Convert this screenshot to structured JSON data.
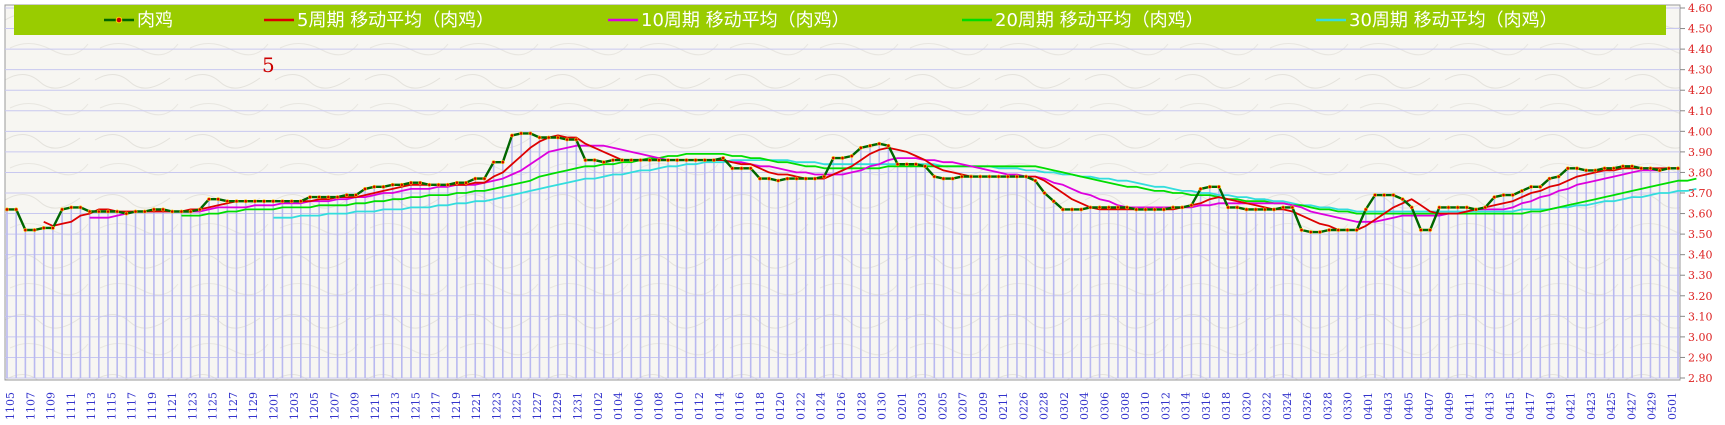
{
  "chart_data": {
    "type": "line",
    "title": "",
    "annotation": "5",
    "xlabel": "",
    "ylabel": "",
    "ylim": [
      2.8,
      4.6
    ],
    "ytick_step": 0.1,
    "yticks": [
      "2.80",
      "2.90",
      "3.00",
      "3.10",
      "3.20",
      "3.30",
      "3.40",
      "3.50",
      "3.60",
      "3.70",
      "3.80",
      "3.90",
      "4.00",
      "4.10",
      "4.20",
      "4.30",
      "4.40",
      "4.50",
      "4.60"
    ],
    "x_tick_labels": [
      "1105",
      "1107",
      "1109",
      "1111",
      "1113",
      "1115",
      "1117",
      "1119",
      "1121",
      "1123",
      "1125",
      "1127",
      "1129",
      "1201",
      "1203",
      "1205",
      "1207",
      "1209",
      "1211",
      "1213",
      "1215",
      "1217",
      "1219",
      "1221",
      "1223",
      "1225",
      "1227",
      "1229",
      "1231",
      "0102",
      "0104",
      "0106",
      "0108",
      "0110",
      "0112",
      "0114",
      "0116",
      "0118",
      "0120",
      "0122",
      "0124",
      "0126",
      "0128",
      "0130",
      "0201",
      "0203",
      "0205",
      "0207",
      "0209",
      "0211",
      "0226",
      "0228",
      "0302",
      "0304",
      "0306",
      "0308",
      "0310",
      "0312",
      "0314",
      "0316",
      "0318",
      "0320",
      "0322",
      "0324",
      "0326",
      "0328",
      "0330",
      "0401",
      "0403",
      "0405",
      "0407",
      "0409",
      "0411",
      "0413",
      "0415",
      "0417",
      "0419",
      "0421",
      "0423",
      "0425",
      "0427",
      "0429",
      "0501"
    ],
    "grid": true,
    "legend_position": "top",
    "colors": {
      "legend_band": "#99cc00",
      "axis_labels": "#dd2222",
      "x_labels": "#3333cc",
      "bars": "#b9b9f0",
      "grid": "#c8c8f0",
      "annotation": "#cc0000"
    },
    "series": [
      {
        "name": "肉鸡",
        "color": "#006600",
        "marker": "#cc0000",
        "values": [
          3.62,
          3.62,
          3.52,
          3.52,
          3.53,
          3.53,
          3.62,
          3.63,
          3.63,
          3.61,
          3.61,
          3.61,
          3.61,
          3.6,
          3.61,
          3.61,
          3.62,
          3.62,
          3.61,
          3.61,
          3.61,
          3.62,
          3.67,
          3.67,
          3.66,
          3.66,
          3.66,
          3.66,
          3.66,
          3.66,
          3.66,
          3.66,
          3.66,
          3.68,
          3.68,
          3.68,
          3.68,
          3.69,
          3.69,
          3.72,
          3.73,
          3.73,
          3.74,
          3.74,
          3.75,
          3.75,
          3.74,
          3.74,
          3.74,
          3.75,
          3.75,
          3.77,
          3.77,
          3.85,
          3.85,
          3.98,
          3.99,
          3.99,
          3.97,
          3.97,
          3.97,
          3.96,
          3.96,
          3.86,
          3.86,
          3.85,
          3.86,
          3.86,
          3.86,
          3.86,
          3.86,
          3.86,
          3.86,
          3.86,
          3.86,
          3.86,
          3.86,
          3.86,
          3.87,
          3.82,
          3.82,
          3.82,
          3.77,
          3.77,
          3.76,
          3.77,
          3.77,
          3.77,
          3.77,
          3.78,
          3.87,
          3.87,
          3.88,
          3.92,
          3.93,
          3.94,
          3.93,
          3.84,
          3.84,
          3.84,
          3.83,
          3.78,
          3.77,
          3.77,
          3.78,
          3.78,
          3.78,
          3.78,
          3.78,
          3.78,
          3.78,
          3.78,
          3.76,
          3.7,
          3.66,
          3.62,
          3.62,
          3.62,
          3.63,
          3.63,
          3.63,
          3.63,
          3.63,
          3.62,
          3.62,
          3.62,
          3.62,
          3.63,
          3.63,
          3.64,
          3.72,
          3.73,
          3.73,
          3.63,
          3.63,
          3.62,
          3.62,
          3.62,
          3.62,
          3.63,
          3.63,
          3.52,
          3.51,
          3.51,
          3.52,
          3.52,
          3.52,
          3.52,
          3.62,
          3.69,
          3.69,
          3.69,
          3.67,
          3.63,
          3.52,
          3.52,
          3.63,
          3.63,
          3.63,
          3.63,
          3.62,
          3.63,
          3.68,
          3.69,
          3.69,
          3.71,
          3.73,
          3.73,
          3.77,
          3.78,
          3.82,
          3.82,
          3.81,
          3.81,
          3.82,
          3.82,
          3.83,
          3.83,
          3.82,
          3.82,
          3.81,
          3.82,
          3.82
        ]
      },
      {
        "name": "5周期 移动平均（肉鸡）",
        "color": "#dd0000",
        "values": [
          null,
          null,
          null,
          null,
          3.56,
          3.54,
          3.55,
          3.56,
          3.59,
          3.6,
          3.62,
          3.62,
          3.61,
          3.61,
          3.61,
          3.61,
          3.61,
          3.61,
          3.61,
          3.61,
          3.62,
          3.62,
          3.63,
          3.64,
          3.65,
          3.66,
          3.66,
          3.66,
          3.66,
          3.66,
          3.66,
          3.66,
          3.66,
          3.66,
          3.67,
          3.67,
          3.68,
          3.68,
          3.68,
          3.69,
          3.7,
          3.71,
          3.72,
          3.73,
          3.74,
          3.74,
          3.74,
          3.74,
          3.74,
          3.74,
          3.74,
          3.75,
          3.75,
          3.78,
          3.8,
          3.84,
          3.88,
          3.92,
          3.95,
          3.97,
          3.98,
          3.97,
          3.97,
          3.94,
          3.92,
          3.9,
          3.88,
          3.86,
          3.86,
          3.86,
          3.86,
          3.86,
          3.86,
          3.86,
          3.86,
          3.86,
          3.86,
          3.86,
          3.86,
          3.85,
          3.84,
          3.84,
          3.82,
          3.8,
          3.79,
          3.79,
          3.78,
          3.77,
          3.77,
          3.77,
          3.79,
          3.81,
          3.83,
          3.86,
          3.89,
          3.91,
          3.92,
          3.91,
          3.9,
          3.88,
          3.86,
          3.83,
          3.81,
          3.8,
          3.79,
          3.78,
          3.78,
          3.78,
          3.78,
          3.78,
          3.78,
          3.78,
          3.78,
          3.76,
          3.73,
          3.7,
          3.67,
          3.65,
          3.63,
          3.62,
          3.62,
          3.62,
          3.62,
          3.62,
          3.62,
          3.62,
          3.62,
          3.62,
          3.63,
          3.64,
          3.65,
          3.67,
          3.68,
          3.67,
          3.66,
          3.65,
          3.64,
          3.63,
          3.62,
          3.62,
          3.61,
          3.59,
          3.57,
          3.55,
          3.54,
          3.52,
          3.52,
          3.52,
          3.54,
          3.57,
          3.6,
          3.63,
          3.65,
          3.67,
          3.64,
          3.61,
          3.6,
          3.6,
          3.6,
          3.61,
          3.62,
          3.63,
          3.64,
          3.65,
          3.66,
          3.68,
          3.7,
          3.71,
          3.73,
          3.74,
          3.76,
          3.78,
          3.79,
          3.8,
          3.81,
          3.81,
          3.82,
          3.82,
          3.82,
          3.82,
          3.82,
          3.82,
          3.82
        ]
      },
      {
        "name": "10周期 移动平均（肉鸡）",
        "color": "#dd00dd",
        "values": [
          null,
          null,
          null,
          null,
          null,
          null,
          null,
          null,
          null,
          3.58,
          3.58,
          3.58,
          3.59,
          3.6,
          3.61,
          3.61,
          3.61,
          3.61,
          3.61,
          3.61,
          3.61,
          3.61,
          3.62,
          3.63,
          3.63,
          3.63,
          3.63,
          3.64,
          3.64,
          3.64,
          3.65,
          3.65,
          3.65,
          3.66,
          3.66,
          3.66,
          3.67,
          3.67,
          3.68,
          3.68,
          3.69,
          3.7,
          3.7,
          3.71,
          3.72,
          3.72,
          3.72,
          3.73,
          3.73,
          3.74,
          3.74,
          3.74,
          3.75,
          3.76,
          3.77,
          3.79,
          3.81,
          3.84,
          3.87,
          3.9,
          3.91,
          3.92,
          3.93,
          3.93,
          3.93,
          3.93,
          3.92,
          3.91,
          3.9,
          3.89,
          3.88,
          3.87,
          3.86,
          3.86,
          3.86,
          3.86,
          3.86,
          3.86,
          3.86,
          3.85,
          3.85,
          3.84,
          3.83,
          3.83,
          3.82,
          3.81,
          3.8,
          3.8,
          3.79,
          3.79,
          3.79,
          3.79,
          3.8,
          3.81,
          3.83,
          3.84,
          3.86,
          3.87,
          3.87,
          3.87,
          3.86,
          3.86,
          3.85,
          3.85,
          3.84,
          3.83,
          3.82,
          3.81,
          3.8,
          3.79,
          3.79,
          3.78,
          3.78,
          3.77,
          3.75,
          3.74,
          3.72,
          3.7,
          3.69,
          3.67,
          3.66,
          3.64,
          3.63,
          3.63,
          3.63,
          3.63,
          3.63,
          3.63,
          3.63,
          3.63,
          3.64,
          3.64,
          3.65,
          3.65,
          3.65,
          3.65,
          3.65,
          3.65,
          3.65,
          3.65,
          3.64,
          3.63,
          3.61,
          3.6,
          3.59,
          3.58,
          3.57,
          3.56,
          3.56,
          3.56,
          3.57,
          3.58,
          3.59,
          3.59,
          3.59,
          3.59,
          3.59,
          3.6,
          3.6,
          3.61,
          3.62,
          3.62,
          3.62,
          3.62,
          3.63,
          3.65,
          3.66,
          3.68,
          3.69,
          3.71,
          3.72,
          3.74,
          3.75,
          3.76,
          3.77,
          3.78,
          3.79,
          3.8,
          3.81,
          3.81,
          3.81,
          3.82,
          3.82
        ]
      },
      {
        "name": "20周期 移动平均（肉鸡）",
        "color": "#00dd00",
        "values": [
          null,
          null,
          null,
          null,
          null,
          null,
          null,
          null,
          null,
          null,
          null,
          null,
          null,
          null,
          null,
          null,
          null,
          null,
          null,
          3.59,
          3.59,
          3.59,
          3.6,
          3.6,
          3.61,
          3.61,
          3.62,
          3.62,
          3.62,
          3.62,
          3.63,
          3.63,
          3.63,
          3.63,
          3.64,
          3.64,
          3.64,
          3.64,
          3.65,
          3.65,
          3.66,
          3.66,
          3.67,
          3.67,
          3.68,
          3.68,
          3.69,
          3.69,
          3.69,
          3.7,
          3.7,
          3.71,
          3.71,
          3.72,
          3.73,
          3.74,
          3.75,
          3.76,
          3.78,
          3.79,
          3.8,
          3.81,
          3.82,
          3.83,
          3.83,
          3.84,
          3.84,
          3.85,
          3.85,
          3.86,
          3.87,
          3.87,
          3.88,
          3.88,
          3.89,
          3.89,
          3.89,
          3.89,
          3.89,
          3.88,
          3.88,
          3.87,
          3.87,
          3.86,
          3.85,
          3.85,
          3.84,
          3.83,
          3.83,
          3.82,
          3.82,
          3.82,
          3.82,
          3.82,
          3.82,
          3.82,
          3.83,
          3.83,
          3.83,
          3.83,
          3.83,
          3.83,
          3.83,
          3.83,
          3.83,
          3.83,
          3.83,
          3.83,
          3.83,
          3.83,
          3.83,
          3.83,
          3.83,
          3.82,
          3.81,
          3.8,
          3.79,
          3.78,
          3.77,
          3.76,
          3.75,
          3.74,
          3.73,
          3.73,
          3.72,
          3.71,
          3.71,
          3.7,
          3.7,
          3.69,
          3.69,
          3.69,
          3.68,
          3.67,
          3.67,
          3.66,
          3.66,
          3.66,
          3.65,
          3.65,
          3.64,
          3.64,
          3.63,
          3.62,
          3.62,
          3.61,
          3.61,
          3.6,
          3.6,
          3.6,
          3.6,
          3.6,
          3.6,
          3.6,
          3.6,
          3.6,
          3.6,
          3.6,
          3.6,
          3.6,
          3.6,
          3.6,
          3.6,
          3.6,
          3.6,
          3.6,
          3.61,
          3.61,
          3.62,
          3.63,
          3.64,
          3.65,
          3.66,
          3.67,
          3.68,
          3.69,
          3.7,
          3.71,
          3.72,
          3.73,
          3.74,
          3.75,
          3.76,
          3.76,
          3.77
        ]
      },
      {
        "name": "30周期 移动平均（肉鸡）",
        "color": "#33dddd",
        "values": [
          null,
          null,
          null,
          null,
          null,
          null,
          null,
          null,
          null,
          null,
          null,
          null,
          null,
          null,
          null,
          null,
          null,
          null,
          null,
          null,
          null,
          null,
          null,
          null,
          null,
          null,
          null,
          null,
          null,
          3.58,
          3.58,
          3.58,
          3.59,
          3.59,
          3.59,
          3.6,
          3.6,
          3.6,
          3.61,
          3.61,
          3.61,
          3.62,
          3.62,
          3.62,
          3.63,
          3.63,
          3.63,
          3.64,
          3.64,
          3.65,
          3.65,
          3.66,
          3.66,
          3.67,
          3.68,
          3.69,
          3.7,
          3.71,
          3.72,
          3.73,
          3.74,
          3.75,
          3.76,
          3.77,
          3.77,
          3.78,
          3.79,
          3.79,
          3.8,
          3.81,
          3.81,
          3.82,
          3.83,
          3.83,
          3.84,
          3.84,
          3.85,
          3.85,
          3.85,
          3.86,
          3.86,
          3.86,
          3.86,
          3.86,
          3.86,
          3.86,
          3.85,
          3.85,
          3.85,
          3.84,
          3.84,
          3.84,
          3.84,
          3.84,
          3.84,
          3.84,
          3.84,
          3.84,
          3.84,
          3.84,
          3.84,
          3.84,
          3.83,
          3.83,
          3.83,
          3.83,
          3.83,
          3.83,
          3.82,
          3.82,
          3.82,
          3.81,
          3.81,
          3.8,
          3.8,
          3.79,
          3.79,
          3.78,
          3.78,
          3.77,
          3.77,
          3.76,
          3.76,
          3.75,
          3.74,
          3.73,
          3.73,
          3.72,
          3.71,
          3.71,
          3.7,
          3.7,
          3.69,
          3.69,
          3.68,
          3.68,
          3.67,
          3.67,
          3.66,
          3.66,
          3.65,
          3.64,
          3.64,
          3.63,
          3.63,
          3.62,
          3.62,
          3.61,
          3.61,
          3.61,
          3.61,
          3.61,
          3.61,
          3.61,
          3.61,
          3.61,
          3.61,
          3.61,
          3.61,
          3.61,
          3.61,
          3.61,
          3.61,
          3.61,
          3.61,
          3.62,
          3.62,
          3.62,
          3.62,
          3.63,
          3.63,
          3.64,
          3.64,
          3.65,
          3.66,
          3.66,
          3.67,
          3.68,
          3.68,
          3.69,
          3.7,
          3.7,
          3.71,
          3.71,
          3.72
        ]
      }
    ]
  }
}
